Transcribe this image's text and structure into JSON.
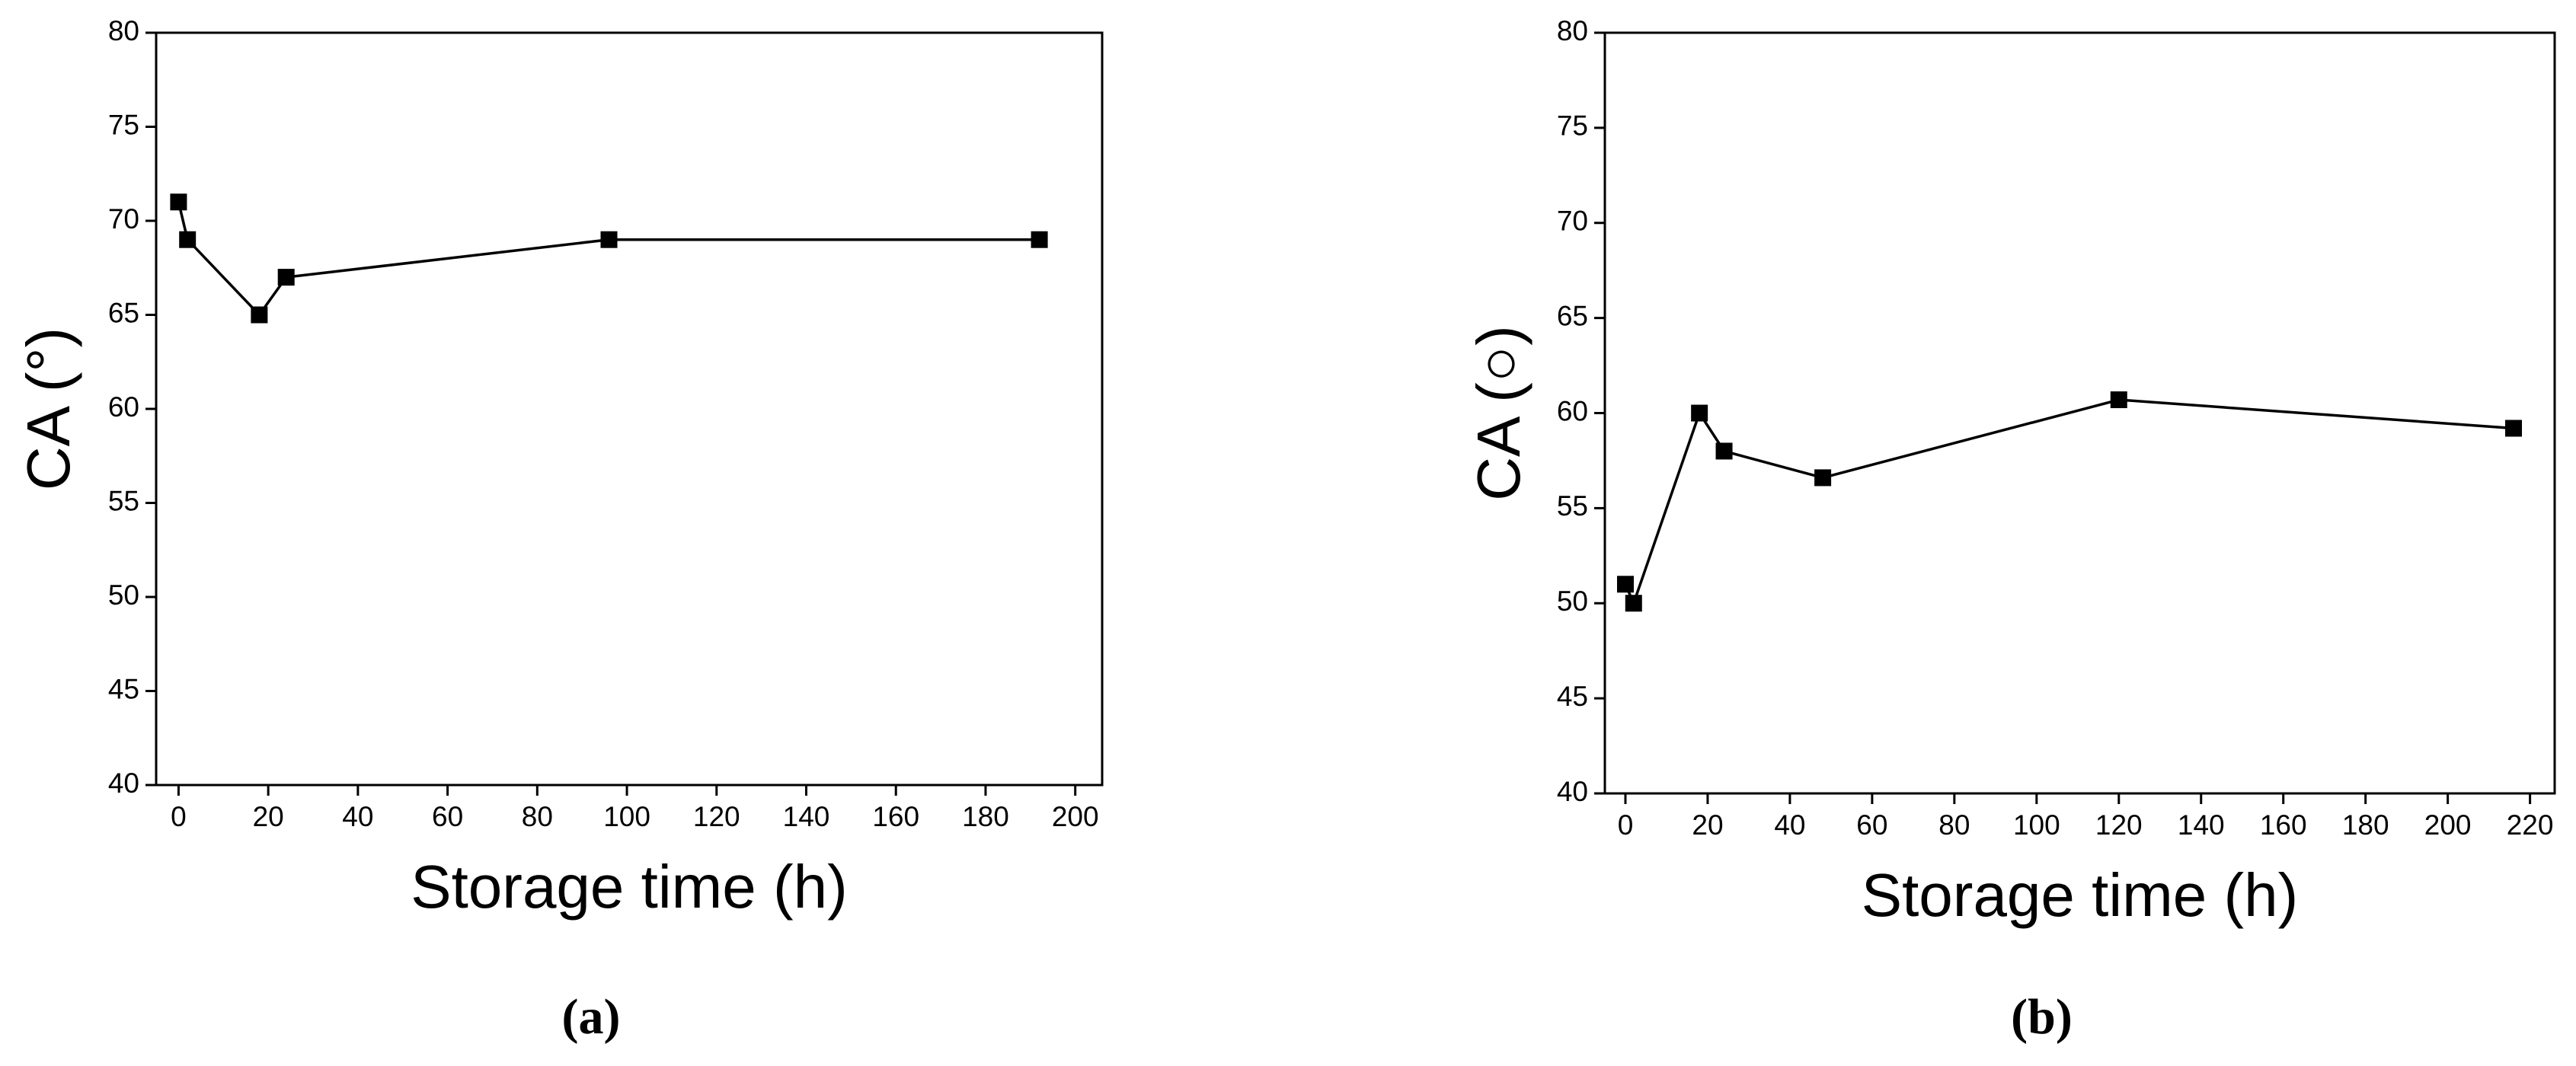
{
  "chart_data": [
    {
      "type": "line",
      "caption": "(a)",
      "xlabel": "Storage time (h)",
      "ylabel": "CA (°)",
      "x": [
        0,
        2,
        18,
        24,
        96,
        192
      ],
      "series": [
        {
          "color": "#000000",
          "values": [
            71,
            69,
            65,
            67,
            69,
            69
          ]
        }
      ],
      "xlim": [
        -5,
        206
      ],
      "ylim": [
        40,
        80
      ],
      "xticks": [
        0,
        20,
        40,
        60,
        80,
        100,
        120,
        140,
        160,
        180,
        200
      ],
      "yticks": [
        40,
        45,
        50,
        55,
        60,
        65,
        70,
        75,
        80
      ]
    },
    {
      "type": "line",
      "caption": "(b)",
      "xlabel": "Storage time (h)",
      "ylabel": "CA (○)",
      "x": [
        0,
        2,
        18,
        24,
        48,
        120,
        216
      ],
      "series": [
        {
          "color": "#000000",
          "values": [
            51,
            50,
            60,
            58,
            56.6,
            60.7,
            59.2
          ]
        }
      ],
      "xlim": [
        -5,
        226
      ],
      "ylim": [
        40,
        80
      ],
      "xticks": [
        0,
        20,
        40,
        60,
        80,
        100,
        120,
        140,
        160,
        180,
        200,
        220
      ],
      "yticks": [
        40,
        45,
        50,
        55,
        60,
        65,
        70,
        75,
        80
      ]
    }
  ]
}
